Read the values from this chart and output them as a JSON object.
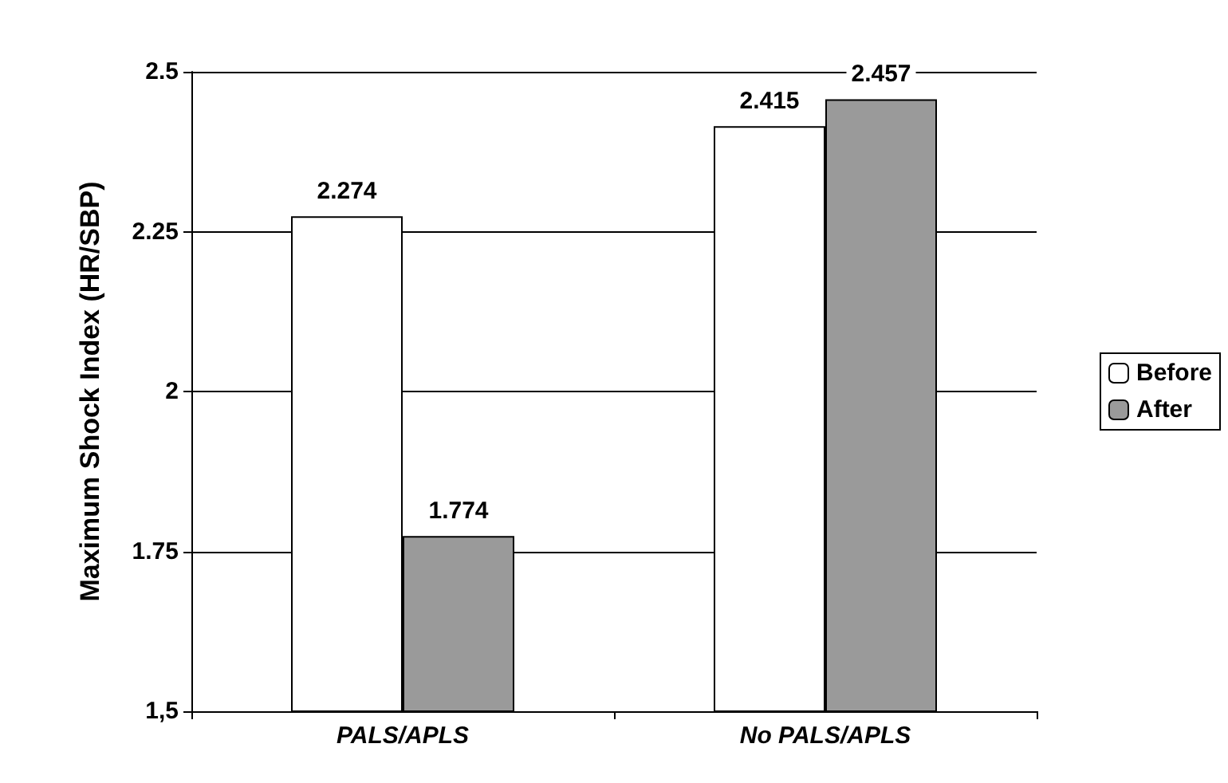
{
  "chart_data": {
    "type": "bar",
    "ylabel": "Maximum Shock Index (HR/SBP)",
    "categories": [
      "PALS/APLS",
      "No PALS/APLS"
    ],
    "series": [
      {
        "name": "Before",
        "color": "#ffffff",
        "values": [
          2.274,
          2.415
        ]
      },
      {
        "name": "After",
        "color": "#9a9a9a",
        "values": [
          1.774,
          2.457
        ]
      }
    ],
    "ylim": [
      1.5,
      2.5
    ],
    "yticks": [
      {
        "value": 1.5,
        "label": "1,5"
      },
      2.25,
      2,
      1.75,
      2.5
    ],
    "grid": "y",
    "legend": "right",
    "data_labels": true
  }
}
